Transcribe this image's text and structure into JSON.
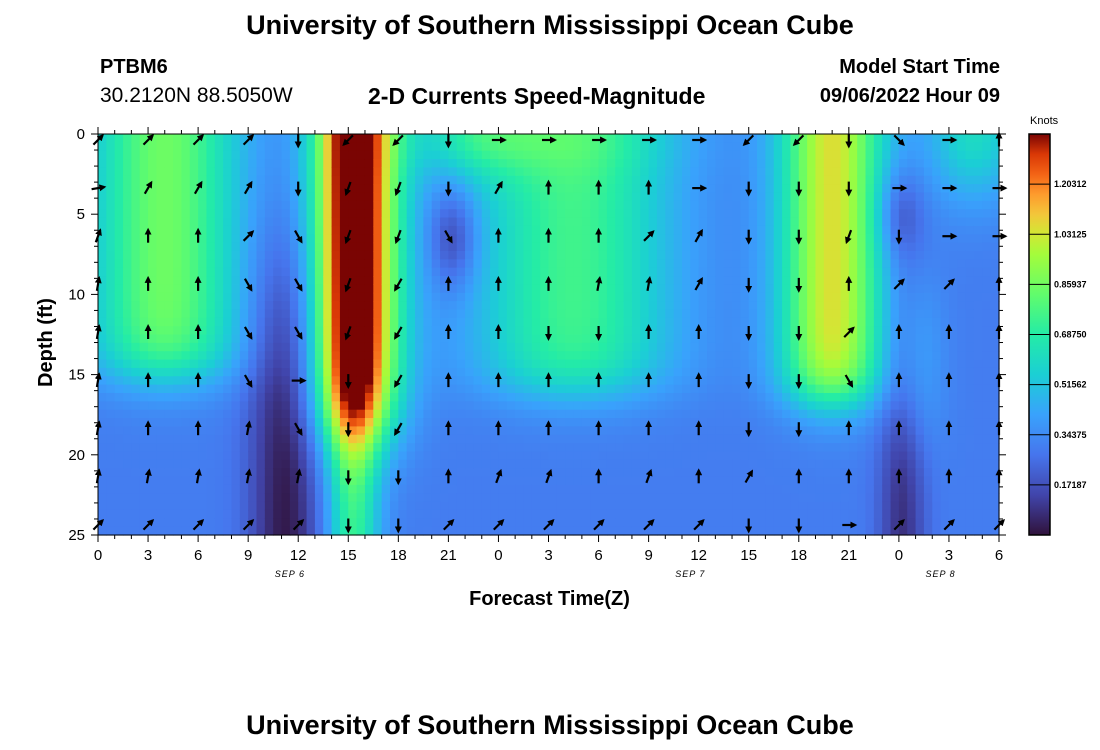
{
  "header": {
    "title": "University of Southern Mississippi Ocean Cube",
    "station_id": "PTBM6",
    "station_coords": "30.2120N  88.5050W",
    "chart_title": "2-D Currents Speed-Magnitude",
    "model_start_label": "Model Start Time",
    "model_start_value": "09/06/2022 Hour 09"
  },
  "footer": {
    "title": "University of Southern Mississippi Ocean Cube"
  },
  "chart_data": {
    "type": "heatmap",
    "title": "2-D Currents Speed-Magnitude",
    "xlabel": "Forecast Time(Z)",
    "ylabel": "Depth (ft)",
    "x_range_hours": [
      0,
      54
    ],
    "x_tick_labels": [
      "0",
      "3",
      "6",
      "9",
      "12",
      "15",
      "18",
      "21",
      "0",
      "3",
      "6",
      "9",
      "12",
      "15",
      "18",
      "21",
      "0",
      "3",
      "6"
    ],
    "y_range": [
      0,
      25
    ],
    "y_ticks": [
      0,
      5,
      10,
      15,
      20,
      25
    ],
    "date_labels": [
      {
        "label": "SEP 6",
        "hour": 11.5
      },
      {
        "label": "SEP 7",
        "hour": 35.5
      },
      {
        "label": "SEP 8",
        "hour": 50.5
      }
    ],
    "colorbar": {
      "title": "Knots",
      "range": [
        0,
        1.375
      ],
      "tick_labels": [
        "1.20312",
        "1.03125",
        "0.85937",
        "0.68750",
        "0.51562",
        "0.34375",
        "0.17187"
      ],
      "tick_values": [
        1.20312,
        1.03125,
        0.859375,
        0.6875,
        0.515625,
        0.34375,
        0.171875
      ]
    },
    "vector_hours": [
      0,
      3,
      6,
      9,
      12,
      15,
      18,
      21,
      24,
      27,
      30,
      33,
      36,
      39,
      42,
      45,
      48,
      51,
      54
    ],
    "vector_depths": [
      0,
      3,
      6,
      9,
      12,
      15,
      18,
      21,
      24
    ],
    "vector_directions_deg": [
      [
        45,
        45,
        45,
        45,
        180,
        225,
        225,
        180,
        90,
        90,
        90,
        90,
        90,
        225,
        225,
        180,
        135,
        90,
        0
      ],
      [
        80,
        30,
        30,
        30,
        180,
        200,
        200,
        180,
        30,
        0,
        0,
        0,
        90,
        180,
        180,
        180,
        90,
        90,
        90
      ],
      [
        20,
        0,
        0,
        45,
        150,
        200,
        200,
        150,
        0,
        0,
        0,
        45,
        30,
        180,
        180,
        200,
        180,
        90,
        90
      ],
      [
        10,
        0,
        0,
        150,
        150,
        200,
        210,
        0,
        0,
        0,
        10,
        10,
        30,
        180,
        180,
        0,
        45,
        45,
        0
      ],
      [
        10,
        0,
        0,
        150,
        150,
        200,
        210,
        0,
        0,
        180,
        180,
        0,
        0,
        180,
        180,
        45,
        0,
        0,
        0
      ],
      [
        10,
        0,
        0,
        150,
        90,
        180,
        210,
        0,
        0,
        0,
        0,
        0,
        0,
        180,
        180,
        150,
        0,
        0,
        0
      ],
      [
        10,
        0,
        0,
        10,
        150,
        180,
        210,
        0,
        0,
        0,
        0,
        0,
        0,
        180,
        180,
        0,
        0,
        0,
        0
      ],
      [
        10,
        10,
        10,
        10,
        10,
        180,
        180,
        0,
        20,
        20,
        0,
        20,
        0,
        30,
        0,
        0,
        0,
        0,
        0
      ],
      [
        45,
        45,
        45,
        45,
        45,
        180,
        180,
        45,
        45,
        45,
        45,
        45,
        45,
        180,
        180,
        90,
        45,
        45,
        45
      ]
    ]
  }
}
